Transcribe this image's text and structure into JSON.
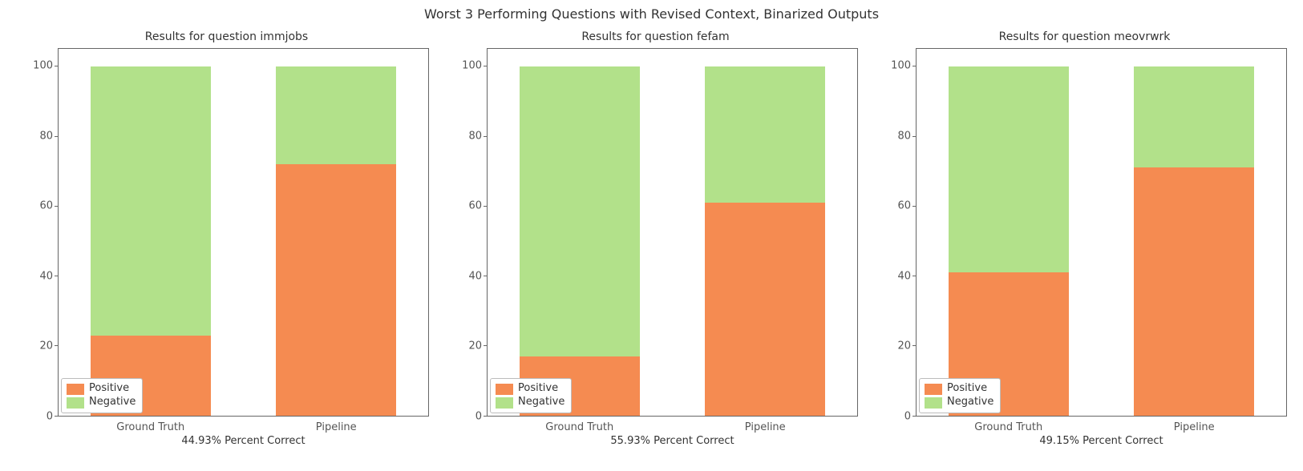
{
  "figure": {
    "suptitle": "Worst 3 Performing Questions with Revised Context, Binarized Outputs",
    "suptitle_fontsize": 16,
    "background_color": "#ffffff",
    "spine_color": "#666666",
    "text_color": "#333333",
    "tick_color": "#555555",
    "title_fontsize": 14,
    "tick_fontsize": 13,
    "xlabel_fontsize": 13,
    "legend_fontsize": 13,
    "legend_border_color": "#bcbcbc",
    "axes_aspect_hint": "~3 panels across 1625x588"
  },
  "series": {
    "positive": {
      "label": "Positive",
      "color": "#f58b51"
    },
    "negative": {
      "label": "Negative",
      "color": "#b2e18a"
    }
  },
  "yaxis": {
    "ylim": [
      0,
      105
    ],
    "ticks": [
      0,
      20,
      40,
      60,
      80,
      100
    ]
  },
  "xaxis": {
    "categories": [
      "Ground Truth",
      "Pipeline"
    ]
  },
  "subplots": [
    {
      "id": "immjobs",
      "title": "Results for question immjobs",
      "xlabel": "44.93% Percent Correct",
      "bars": [
        {
          "category": "Ground Truth",
          "positive": 23,
          "negative": 77
        },
        {
          "category": "Pipeline",
          "positive": 72,
          "negative": 28
        }
      ]
    },
    {
      "id": "fefam",
      "title": "Results for question fefam",
      "xlabel": "55.93% Percent Correct",
      "bars": [
        {
          "category": "Ground Truth",
          "positive": 17,
          "negative": 83
        },
        {
          "category": "Pipeline",
          "positive": 61,
          "negative": 39
        }
      ]
    },
    {
      "id": "meovrwrk",
      "title": "Results for question meovrwrk",
      "xlabel": "49.15% Percent Correct",
      "bars": [
        {
          "category": "Ground Truth",
          "positive": 41,
          "negative": 59
        },
        {
          "category": "Pipeline",
          "positive": 71,
          "negative": 29
        }
      ]
    }
  ]
}
